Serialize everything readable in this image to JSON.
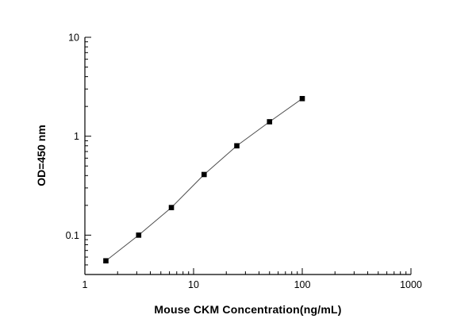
{
  "chart_data": {
    "type": "line",
    "title": "",
    "xlabel": "Mouse CKM Concentration(ng/mL)",
    "ylabel": "OD=450 nm",
    "x_scale": "log",
    "y_scale": "log",
    "xlim": [
      1,
      1000
    ],
    "ylim": [
      0.04,
      10
    ],
    "x_ticks": [
      1,
      10,
      100,
      1000
    ],
    "y_ticks": [
      0.1,
      1,
      10
    ],
    "grid": false,
    "legend": "none",
    "series": [
      {
        "name": "standard-curve",
        "marker": "filled-square",
        "x": [
          1.56,
          3.125,
          6.25,
          12.5,
          25,
          50,
          100
        ],
        "y": [
          0.055,
          0.1,
          0.19,
          0.41,
          0.8,
          1.4,
          2.4
        ]
      }
    ]
  },
  "colors": {
    "background": "#ffffff",
    "axis": "#000000",
    "marker": "#000000",
    "line": "#4d4d4d"
  }
}
